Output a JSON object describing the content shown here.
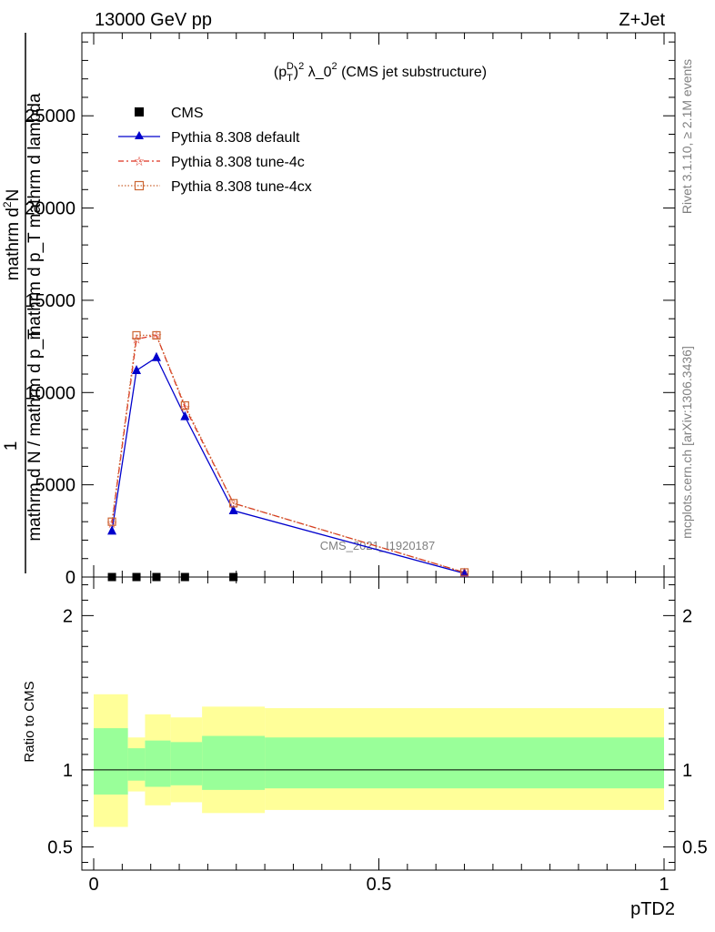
{
  "header": {
    "left": "13000 GeV pp",
    "right": "Z+Jet"
  },
  "plot_title": "(p_T^D)^2 λ_0^2 (CMS jet substructure)",
  "side_text": {
    "rivet": "Rivet 3.1.10, ≥ 2.1M events",
    "mcplots": "mcplots.cern.ch [arXiv:1306.3436]"
  },
  "watermark": "CMS_2021_I1920187",
  "ylabel_main": {
    "numerator": "mathrm d²N",
    "numerator_cont": "mathrm d p_T mathrm d lambda",
    "one": "1",
    "denominator": "mathrm d N / mathrm d p_T"
  },
  "ylabel_ratio": "Ratio to CMS",
  "xlabel": "pTD2",
  "legend": [
    {
      "label": "CMS"
    },
    {
      "label": "Pythia 8.308 default"
    },
    {
      "label": "Pythia 8.308 tune-4c"
    },
    {
      "label": "Pythia 8.308 tune-4cx"
    }
  ],
  "colors": {
    "cms": "#000000",
    "default": "#0000cc",
    "tune4c": "#dd3322",
    "tune4cx": "#cc6633",
    "band_inner": "#99ff99",
    "band_outer": "#ffff99"
  },
  "chart_data": {
    "type": "line",
    "xlim": [
      0,
      1
    ],
    "main_ylim": [
      0,
      29500
    ],
    "main_yticks": [
      {
        "value": 0,
        "label": "0"
      },
      {
        "value": 5000,
        "label": "5000"
      },
      {
        "value": 10000,
        "label": "10000"
      },
      {
        "value": 15000,
        "label": "15000"
      },
      {
        "value": 20000,
        "label": "20000"
      },
      {
        "value": 25000,
        "label": "25000"
      }
    ],
    "ratio_ylim": [
      0.35,
      2.25
    ],
    "ratio_yticks": [
      {
        "value": 0.5,
        "label": "0.5"
      },
      {
        "value": 1,
        "label": "1"
      },
      {
        "value": 2,
        "label": "2"
      }
    ],
    "xticks": [
      {
        "value": 0,
        "label": "0"
      },
      {
        "value": 0.5,
        "label": "0.5"
      },
      {
        "value": 1,
        "label": "1"
      }
    ],
    "x": [
      0.032,
      0.075,
      0.11,
      0.16,
      0.245,
      0.65
    ],
    "series": [
      {
        "name": "CMS",
        "key": "cms",
        "values": [
          0,
          0,
          0,
          0,
          0,
          null
        ]
      },
      {
        "name": "Pythia 8.308 default",
        "key": "default",
        "values": [
          2500,
          11200,
          11900,
          8700,
          3600,
          200
        ]
      },
      {
        "name": "Pythia 8.308 tune-4c",
        "key": "tune4c",
        "values": [
          2900,
          12900,
          13100,
          9200,
          4000,
          250
        ]
      },
      {
        "name": "Pythia 8.308 tune-4cx",
        "key": "tune4cx",
        "values": [
          3000,
          13100,
          13100,
          9300,
          4000,
          250
        ]
      }
    ],
    "ratio_bands": [
      {
        "x0": 0.0,
        "x1": 0.06,
        "inner": [
          0.84,
          1.27
        ],
        "outer": [
          0.63,
          1.49
        ]
      },
      {
        "x0": 0.06,
        "x1": 0.09,
        "inner": [
          0.93,
          1.14
        ],
        "outer": [
          0.86,
          1.21
        ]
      },
      {
        "x0": 0.09,
        "x1": 0.135,
        "inner": [
          0.89,
          1.19
        ],
        "outer": [
          0.77,
          1.36
        ]
      },
      {
        "x0": 0.135,
        "x1": 0.19,
        "inner": [
          0.9,
          1.18
        ],
        "outer": [
          0.79,
          1.34
        ]
      },
      {
        "x0": 0.19,
        "x1": 0.3,
        "inner": [
          0.87,
          1.22
        ],
        "outer": [
          0.72,
          1.41
        ]
      },
      {
        "x0": 0.3,
        "x1": 1.0,
        "inner": [
          0.88,
          1.21
        ],
        "outer": [
          0.74,
          1.4
        ]
      }
    ],
    "ratio_reference": 1
  }
}
